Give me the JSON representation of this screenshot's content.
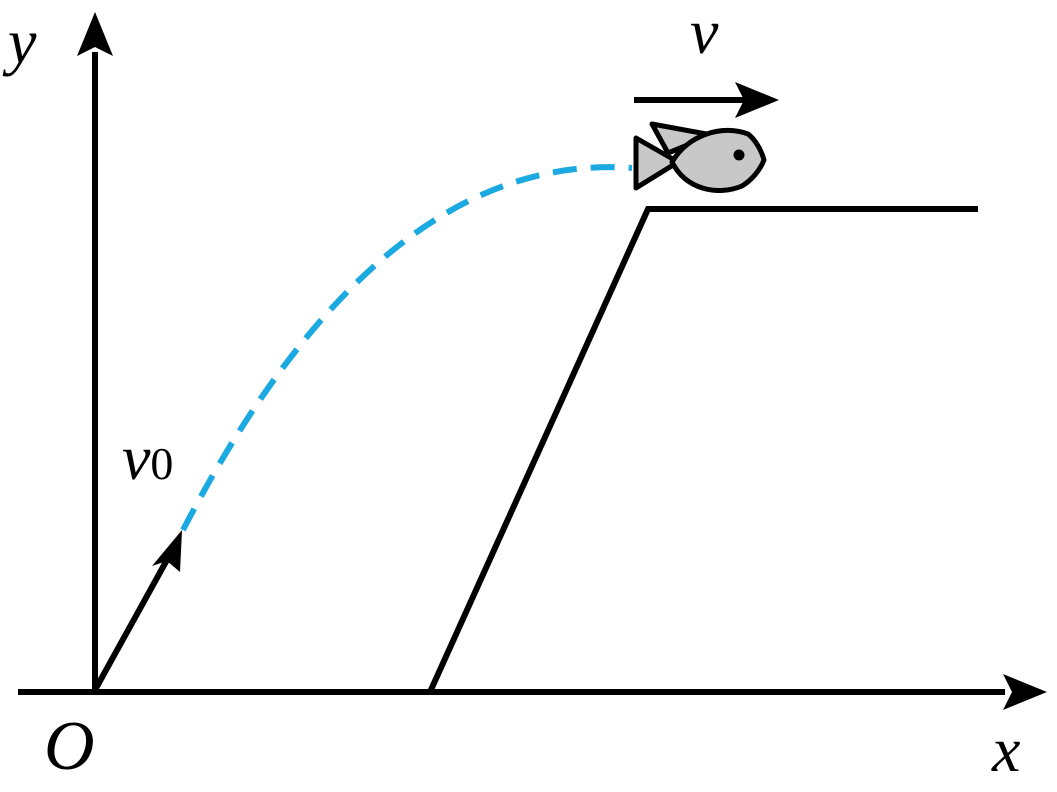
{
  "labels": {
    "y_axis": "y",
    "x_axis": "x",
    "origin": "O",
    "v0_symbol": "v",
    "v0_subscript": "0",
    "v": "v"
  },
  "colors": {
    "stroke": "#000000",
    "trajectory": "#1ba9e1",
    "fish_fill": "#c8c8c8"
  },
  "icons": {
    "fish": "fish-icon"
  }
}
